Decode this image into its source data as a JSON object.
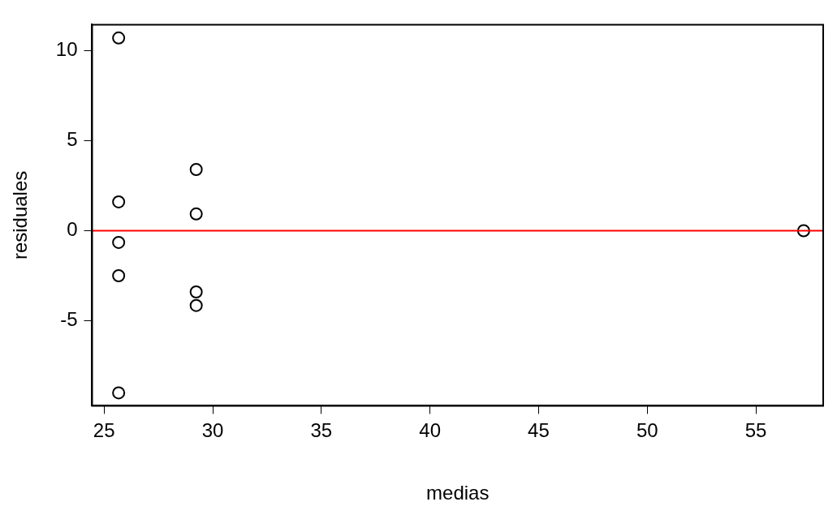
{
  "chart_data": {
    "type": "scatter",
    "xlabel": "medias",
    "ylabel": "residuales",
    "x": [
      25.67,
      25.67,
      25.67,
      25.67,
      25.67,
      29.24,
      29.24,
      29.24,
      29.24,
      57.2
    ],
    "values": [
      10.7,
      1.6,
      -0.65,
      -2.5,
      -9.0,
      3.4,
      0.93,
      -3.4,
      -4.15,
      0
    ],
    "color": "#000000",
    "marker": "circle",
    "xlim": [
      24.45,
      58.1
    ],
    "ylim": [
      -9.72,
      11.44
    ],
    "xticks": [
      25,
      30,
      35,
      40,
      45,
      50,
      55
    ],
    "yticks": [
      -5,
      0,
      5,
      10
    ],
    "ref_lines": [
      {
        "axis": "y",
        "value": 0,
        "color": "#ff0000"
      }
    ],
    "grid": false,
    "legend": false
  }
}
